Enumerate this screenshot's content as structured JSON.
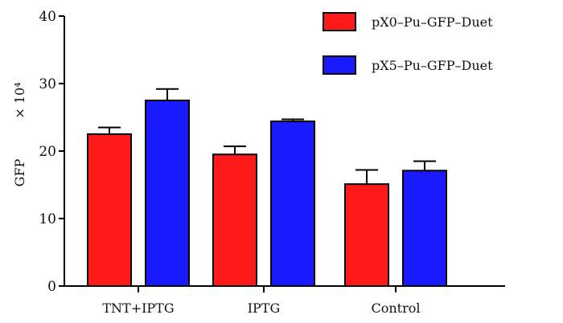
{
  "chart_data": {
    "type": "bar",
    "categories": [
      "TNT+IPTG",
      "IPTG",
      "Control"
    ],
    "series": [
      {
        "name": "pX0–Pu–GFP–Duet",
        "values": [
          22.5,
          19.5,
          15.1
        ],
        "errors": [
          1.0,
          1.2,
          2.1
        ],
        "color": "#ff1a1a"
      },
      {
        "name": "pX5–Pu–GFP–Duet",
        "values": [
          27.5,
          24.4,
          17.1
        ],
        "errors": [
          1.7,
          0.3,
          1.4
        ],
        "color": "#1a1aff"
      }
    ],
    "ylabel": "GFP",
    "y_multiplier": "× 10⁴",
    "ylim": [
      0,
      40
    ],
    "yticks": [
      0,
      10,
      20,
      30,
      40
    ],
    "grid": false,
    "legend_position": "top-right"
  }
}
